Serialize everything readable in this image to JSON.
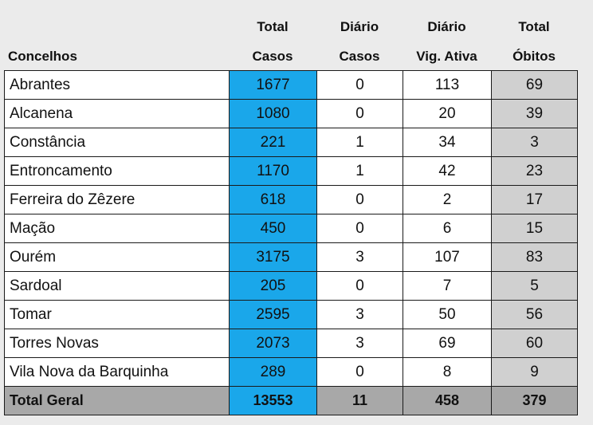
{
  "headers": {
    "concelhos": "Concelhos",
    "total_casos": [
      "Total",
      "Casos"
    ],
    "diario_casos": [
      "Diário",
      "Casos"
    ],
    "diario_vig": [
      "Diário",
      "Vig. Ativa"
    ],
    "total_obitos": [
      "Total",
      "Óbitos"
    ]
  },
  "rows": [
    {
      "name": "Abrantes",
      "casos": "1677",
      "diario": "0",
      "vig": "113",
      "obitos": "69"
    },
    {
      "name": "Alcanena",
      "casos": "1080",
      "diario": "0",
      "vig": "20",
      "obitos": "39"
    },
    {
      "name": "Constância",
      "casos": "221",
      "diario": "1",
      "vig": "34",
      "obitos": "3"
    },
    {
      "name": "Entroncamento",
      "casos": "1170",
      "diario": "1",
      "vig": "42",
      "obitos": "23"
    },
    {
      "name": "Ferreira do Zêzere",
      "casos": "618",
      "diario": "0",
      "vig": "2",
      "obitos": "17"
    },
    {
      "name": "Mação",
      "casos": "450",
      "diario": "0",
      "vig": "6",
      "obitos": "15"
    },
    {
      "name": "Ourém",
      "casos": "3175",
      "diario": "3",
      "vig": "107",
      "obitos": "83"
    },
    {
      "name": "Sardoal",
      "casos": "205",
      "diario": "0",
      "vig": "7",
      "obitos": "5"
    },
    {
      "name": "Tomar",
      "casos": "2595",
      "diario": "3",
      "vig": "50",
      "obitos": "56"
    },
    {
      "name": "Torres Novas",
      "casos": "2073",
      "diario": "3",
      "vig": "69",
      "obitos": "60"
    },
    {
      "name": "Vila Nova da Barquinha",
      "casos": "289",
      "diario": "0",
      "vig": "8",
      "obitos": "9"
    }
  ],
  "total": {
    "name": "Total Geral",
    "casos": "13553",
    "diario": "11",
    "vig": "458",
    "obitos": "379"
  },
  "colors": {
    "casos_blue": "#1aa7ea",
    "obitos_gray": "#d0d0d0",
    "total_gray": "#a8a8a8"
  }
}
